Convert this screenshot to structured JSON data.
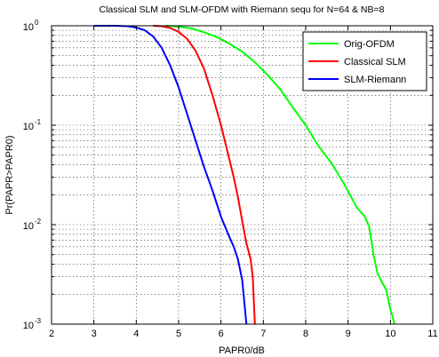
{
  "chart_data": {
    "type": "line",
    "title": "Classical SLM and SLM-OFDM with Riemann sequ  for N=64 & NB=8",
    "xlabel": "PAPR0/dB",
    "ylabel": "Pr(PAPR>PAPR0)",
    "xlim": [
      2,
      11
    ],
    "ylim": [
      0.001,
      1
    ],
    "yscale": "log",
    "grid": true,
    "legend_position": "top-right",
    "x_ticks": [
      "2",
      "3",
      "4",
      "5",
      "6",
      "7",
      "8",
      "9",
      "10",
      "11"
    ],
    "y_ticks": [
      {
        "value": 1,
        "base": "10",
        "exp": "0"
      },
      {
        "value": 0.1,
        "base": "10",
        "exp": "-1"
      },
      {
        "value": 0.01,
        "base": "10",
        "exp": "-2"
      },
      {
        "value": 0.001,
        "base": "10",
        "exp": "-3"
      }
    ],
    "series": [
      {
        "name": "Orig-OFDM",
        "color": "#00ff00",
        "x": [
          4.7,
          5.0,
          5.3,
          5.6,
          5.9,
          6.2,
          6.5,
          6.8,
          7.1,
          7.4,
          7.7,
          8.0,
          8.3,
          8.6,
          8.9,
          9.2,
          9.4,
          9.5,
          9.6,
          9.7,
          9.9,
          10.0,
          10.1
        ],
        "y": [
          1.0,
          0.98,
          0.94,
          0.86,
          0.77,
          0.66,
          0.55,
          0.43,
          0.32,
          0.23,
          0.15,
          0.1,
          0.062,
          0.042,
          0.026,
          0.015,
          0.012,
          0.0095,
          0.005,
          0.0032,
          0.0022,
          0.0014,
          0.001
        ]
      },
      {
        "name": "Classical SLM",
        "color": "#ff0000",
        "x": [
          4.4,
          4.6,
          4.8,
          5.0,
          5.2,
          5.4,
          5.6,
          5.8,
          6.0,
          6.2,
          6.3,
          6.4,
          6.5,
          6.6,
          6.7,
          6.75,
          6.8
        ],
        "y": [
          1.0,
          0.99,
          0.95,
          0.87,
          0.74,
          0.56,
          0.37,
          0.2,
          0.1,
          0.045,
          0.03,
          0.019,
          0.011,
          0.0065,
          0.0045,
          0.003,
          0.001
        ]
      },
      {
        "name": "SLM-Riemann",
        "color": "#0000ff",
        "x": [
          3.0,
          3.5,
          3.8,
          4.0,
          4.2,
          4.4,
          4.6,
          4.8,
          5.0,
          5.2,
          5.4,
          5.6,
          5.8,
          6.0,
          6.2,
          6.3,
          6.4,
          6.5,
          6.6
        ],
        "y": [
          1.0,
          1.0,
          0.99,
          0.96,
          0.9,
          0.78,
          0.6,
          0.4,
          0.24,
          0.13,
          0.07,
          0.038,
          0.022,
          0.012,
          0.0075,
          0.006,
          0.0045,
          0.0028,
          0.001
        ]
      }
    ]
  }
}
